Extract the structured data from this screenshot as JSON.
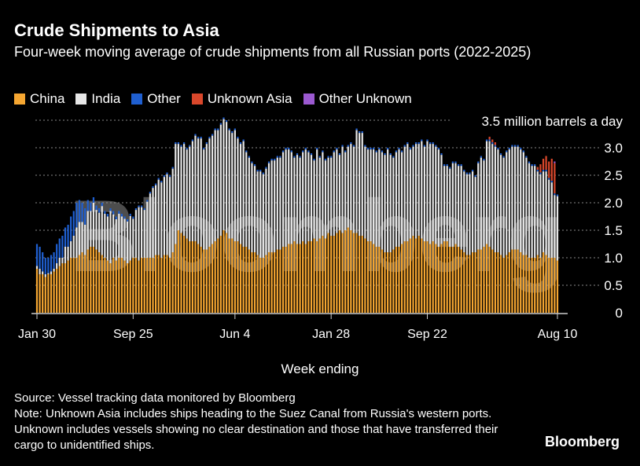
{
  "header": {
    "title": "Crude Shipments to Asia",
    "subtitle": "Four-week moving average of crude shipments from all Russian ports (2022-2025)"
  },
  "footer": {
    "source": "Source: Vessel tracking data monitored by Bloomberg",
    "note": "Note: Unknown Asia includes ships heading to the Suez Canal from Russia's western ports. Unknown includes vessels showing no clear destination and those that have transferred their cargo to unidentified ships.",
    "logo": "Bloomberg",
    "watermark": "Bloomberg"
  },
  "chart_data": {
    "type": "bar",
    "stacked": true,
    "title": "Crude Shipments to Asia",
    "xlabel": "Week ending",
    "ylabel": "million barrels a day",
    "unit_label": "3.5 million barrels a day",
    "ylim": [
      0,
      3.5
    ],
    "yticks": [
      "0",
      "0.5",
      "1.0",
      "1.5",
      "2.0",
      "2.5",
      "3.0"
    ],
    "xticks": [
      {
        "label": "Jan 30",
        "index": 0
      },
      {
        "label": "Sep 25",
        "index": 34
      },
      {
        "label": "Jun 4",
        "index": 70
      },
      {
        "label": "Jan 28",
        "index": 104
      },
      {
        "label": "Sep 22",
        "index": 138
      },
      {
        "label": "Aug 10",
        "index": 184
      }
    ],
    "grid": true,
    "legend": "top-left",
    "series": [
      {
        "name": "China",
        "color": "#f5a631",
        "values": [
          0.8,
          0.7,
          0.7,
          0.65,
          0.7,
          0.7,
          0.75,
          0.8,
          0.85,
          0.9,
          0.9,
          0.95,
          1.0,
          1.0,
          1.0,
          1.05,
          1.1,
          1.05,
          1.15,
          1.2,
          1.2,
          1.15,
          1.1,
          1.05,
          1.0,
          0.95,
          0.9,
          1.0,
          0.95,
          1.0,
          1.0,
          0.95,
          0.9,
          0.95,
          1.0,
          1.0,
          0.95,
          1.0,
          1.0,
          1.0,
          1.0,
          1.0,
          1.05,
          1.05,
          1.0,
          1.05,
          1.05,
          1.0,
          1.1,
          1.25,
          1.5,
          1.45,
          1.4,
          1.35,
          1.3,
          1.3,
          1.3,
          1.25,
          1.2,
          1.15,
          1.15,
          1.2,
          1.25,
          1.3,
          1.35,
          1.4,
          1.5,
          1.45,
          1.35,
          1.35,
          1.3,
          1.3,
          1.25,
          1.2,
          1.2,
          1.15,
          1.1,
          1.1,
          1.05,
          1.0,
          1.0,
          1.05,
          1.1,
          1.1,
          1.1,
          1.15,
          1.15,
          1.2,
          1.2,
          1.25,
          1.25,
          1.3,
          1.25,
          1.25,
          1.3,
          1.25,
          1.3,
          1.3,
          1.35,
          1.3,
          1.35,
          1.4,
          1.35,
          1.45,
          1.4,
          1.4,
          1.45,
          1.5,
          1.45,
          1.5,
          1.55,
          1.5,
          1.45,
          1.45,
          1.4,
          1.4,
          1.35,
          1.3,
          1.3,
          1.25,
          1.2,
          1.2,
          1.15,
          1.1,
          1.1,
          1.1,
          1.15,
          1.2,
          1.2,
          1.25,
          1.3,
          1.3,
          1.35,
          1.4,
          1.35,
          1.4,
          1.35,
          1.3,
          1.3,
          1.25,
          1.3,
          1.25,
          1.2,
          1.25,
          1.3,
          1.3,
          1.2,
          1.2,
          1.25,
          1.2,
          1.15,
          1.1,
          1.05,
          1.05,
          1.1,
          1.1,
          1.15,
          1.15,
          1.2,
          1.25,
          1.2,
          1.15,
          1.1,
          1.1,
          1.05,
          1.0,
          1.05,
          1.1,
          1.15,
          1.15,
          1.15,
          1.1,
          1.05,
          1.05,
          1.0,
          1.0,
          1.0,
          1.05,
          1.0,
          1.1,
          1.05,
          1.0,
          1.0,
          1.0,
          0.95
        ]
      },
      {
        "name": "India",
        "color": "#e6e6e6",
        "values": [
          0.05,
          0.1,
          0.05,
          0.05,
          0.02,
          0.05,
          0.05,
          0.1,
          0.15,
          0.1,
          0.3,
          0.25,
          0.3,
          0.4,
          0.55,
          0.6,
          0.55,
          0.55,
          0.7,
          0.65,
          0.8,
          0.72,
          0.72,
          0.89,
          0.8,
          0.8,
          0.95,
          0.79,
          0.75,
          0.8,
          0.75,
          0.76,
          0.76,
          0.81,
          0.71,
          0.87,
          0.97,
          0.92,
          0.87,
          1.02,
          1.17,
          1.27,
          1.27,
          1.37,
          1.37,
          1.42,
          1.47,
          1.47,
          1.52,
          1.82,
          1.57,
          1.57,
          1.67,
          1.62,
          1.72,
          1.82,
          1.92,
          1.92,
          1.97,
          1.82,
          1.92,
          1.97,
          1.97,
          2.02,
          1.97,
          2.02,
          2.02,
          2.02,
          1.97,
          1.92,
          2.02,
          1.87,
          1.82,
          1.92,
          1.72,
          1.67,
          1.62,
          1.57,
          1.52,
          1.57,
          1.52,
          1.57,
          1.62,
          1.67,
          1.67,
          1.67,
          1.67,
          1.72,
          1.77,
          1.72,
          1.67,
          1.52,
          1.62,
          1.57,
          1.62,
          1.72,
          1.62,
          1.57,
          1.42,
          1.67,
          1.47,
          1.52,
          1.42,
          1.37,
          1.42,
          1.52,
          1.52,
          1.37,
          1.57,
          1.42,
          1.47,
          1.57,
          1.57,
          1.87,
          1.87,
          1.87,
          1.67,
          1.67,
          1.67,
          1.72,
          1.72,
          1.77,
          1.77,
          1.77,
          1.87,
          1.77,
          1.67,
          1.72,
          1.77,
          1.67,
          1.72,
          1.77,
          1.62,
          1.62,
          1.72,
          1.67,
          1.77,
          1.72,
          1.82,
          1.82,
          1.77,
          1.77,
          1.77,
          1.62,
          1.37,
          1.37,
          1.42,
          1.52,
          1.47,
          1.47,
          1.52,
          1.47,
          1.47,
          1.47,
          1.47,
          1.37,
          1.57,
          1.67,
          1.57,
          1.87,
          1.92,
          1.92,
          1.92,
          1.87,
          1.82,
          1.82,
          1.87,
          1.87,
          1.87,
          1.87,
          1.87,
          1.87,
          1.87,
          1.77,
          1.72,
          1.67,
          1.67,
          1.52,
          1.52,
          1.47,
          1.52,
          1.42,
          1.37,
          1.14,
          1.17
        ]
      },
      {
        "name": "Other",
        "color": "#1f5fd0",
        "values": [
          0.4,
          0.4,
          0.35,
          0.3,
          0.28,
          0.3,
          0.3,
          0.35,
          0.35,
          0.4,
          0.35,
          0.4,
          0.45,
          0.45,
          0.45,
          0.4,
          0.35,
          0.3,
          0.2,
          0.15,
          0.1,
          0.08,
          0.08,
          0.06,
          0.05,
          0.05,
          0.05,
          0.06,
          0.05,
          0.05,
          0.05,
          0.04,
          0.04,
          0.04,
          0.04,
          0.03,
          0.03,
          0.03,
          0.03,
          0.03,
          0.03,
          0.03,
          0.03,
          0.03,
          0.03,
          0.03,
          0.03,
          0.03,
          0.03,
          0.03,
          0.03,
          0.03,
          0.03,
          0.03,
          0.03,
          0.03,
          0.03,
          0.03,
          0.03,
          0.03,
          0.03,
          0.03,
          0.03,
          0.03,
          0.03,
          0.03,
          0.03,
          0.03,
          0.03,
          0.03,
          0.03,
          0.03,
          0.03,
          0.03,
          0.03,
          0.03,
          0.03,
          0.03,
          0.03,
          0.03,
          0.03,
          0.03,
          0.03,
          0.03,
          0.03,
          0.03,
          0.03,
          0.03,
          0.03,
          0.03,
          0.03,
          0.03,
          0.03,
          0.03,
          0.03,
          0.03,
          0.03,
          0.03,
          0.03,
          0.03,
          0.03,
          0.03,
          0.03,
          0.03,
          0.03,
          0.03,
          0.03,
          0.03,
          0.03,
          0.03,
          0.03,
          0.03,
          0.03,
          0.03,
          0.03,
          0.03,
          0.03,
          0.03,
          0.03,
          0.03,
          0.03,
          0.03,
          0.03,
          0.03,
          0.03,
          0.03,
          0.03,
          0.03,
          0.03,
          0.03,
          0.03,
          0.03,
          0.03,
          0.03,
          0.03,
          0.03,
          0.03,
          0.03,
          0.03,
          0.03,
          0.03,
          0.03,
          0.03,
          0.03,
          0.03,
          0.03,
          0.03,
          0.03,
          0.03,
          0.03,
          0.03,
          0.03,
          0.03,
          0.03,
          0.03,
          0.03,
          0.03,
          0.03,
          0.03,
          0.03,
          0.03,
          0.03,
          0.03,
          0.03,
          0.03,
          0.03,
          0.03,
          0.03,
          0.03,
          0.03,
          0.03,
          0.03,
          0.03,
          0.03,
          0.03,
          0.03,
          0.03,
          0.03,
          0.03,
          0.03,
          0.03,
          0.03,
          0.03,
          0.03,
          0.03,
          0.03,
          0.03
        ]
      },
      {
        "name": "Unknown Asia",
        "color": "#d9472b",
        "values": [
          0,
          0,
          0,
          0,
          0,
          0,
          0,
          0,
          0,
          0,
          0,
          0,
          0,
          0,
          0,
          0,
          0,
          0,
          0,
          0,
          0,
          0,
          0,
          0,
          0,
          0,
          0,
          0,
          0,
          0,
          0,
          0,
          0,
          0,
          0,
          0,
          0,
          0,
          0,
          0,
          0,
          0,
          0,
          0,
          0,
          0,
          0,
          0,
          0,
          0,
          0,
          0,
          0,
          0,
          0,
          0,
          0,
          0,
          0,
          0,
          0,
          0,
          0,
          0,
          0,
          0,
          0,
          0,
          0,
          0,
          0,
          0,
          0,
          0,
          0,
          0,
          0,
          0,
          0,
          0,
          0,
          0,
          0,
          0,
          0,
          0,
          0,
          0,
          0,
          0,
          0,
          0,
          0,
          0,
          0,
          0,
          0,
          0,
          0,
          0,
          0,
          0,
          0,
          0,
          0,
          0,
          0,
          0,
          0,
          0,
          0,
          0,
          0,
          0,
          0,
          0,
          0,
          0,
          0,
          0,
          0,
          0,
          0,
          0,
          0,
          0,
          0,
          0,
          0,
          0,
          0,
          0,
          0,
          0,
          0,
          0,
          0,
          0,
          0,
          0,
          0,
          0,
          0,
          0,
          0,
          0,
          0,
          0,
          0,
          0,
          0,
          0,
          0,
          0,
          0,
          0,
          0,
          0,
          0,
          0,
          0.05,
          0.05,
          0.05,
          0,
          0,
          0,
          0,
          0,
          0,
          0,
          0,
          0,
          0,
          0,
          0,
          0,
          0,
          0.05,
          0.15,
          0.2,
          0.25,
          0.3,
          0.4,
          0.55,
          0
        ]
      },
      {
        "name": "Other Unknown",
        "color": "#9b59d0",
        "values": [
          0,
          0,
          0,
          0,
          0,
          0,
          0,
          0,
          0,
          0,
          0,
          0,
          0,
          0,
          0,
          0,
          0,
          0,
          0,
          0,
          0,
          0,
          0,
          0,
          0,
          0,
          0,
          0,
          0,
          0,
          0,
          0,
          0,
          0,
          0,
          0,
          0,
          0,
          0,
          0,
          0,
          0,
          0,
          0,
          0,
          0,
          0,
          0,
          0,
          0,
          0,
          0,
          0,
          0,
          0,
          0,
          0,
          0,
          0,
          0,
          0,
          0,
          0,
          0,
          0,
          0,
          0,
          0,
          0,
          0,
          0,
          0,
          0,
          0,
          0,
          0,
          0,
          0,
          0,
          0,
          0,
          0,
          0,
          0,
          0,
          0,
          0,
          0,
          0,
          0,
          0,
          0,
          0,
          0,
          0,
          0,
          0,
          0,
          0,
          0,
          0,
          0,
          0,
          0,
          0,
          0,
          0,
          0,
          0,
          0,
          0,
          0,
          0,
          0,
          0,
          0,
          0,
          0,
          0,
          0,
          0,
          0,
          0,
          0,
          0,
          0,
          0,
          0,
          0,
          0,
          0,
          0,
          0,
          0,
          0,
          0,
          0,
          0,
          0,
          0,
          0,
          0,
          0,
          0,
          0,
          0,
          0,
          0,
          0,
          0,
          0,
          0,
          0,
          0,
          0,
          0,
          0,
          0,
          0,
          0,
          0,
          0,
          0,
          0,
          0,
          0,
          0,
          0,
          0,
          0,
          0,
          0,
          0,
          0,
          0,
          0,
          0,
          0,
          0,
          0,
          0,
          0,
          0,
          0.03,
          0
        ]
      }
    ]
  }
}
